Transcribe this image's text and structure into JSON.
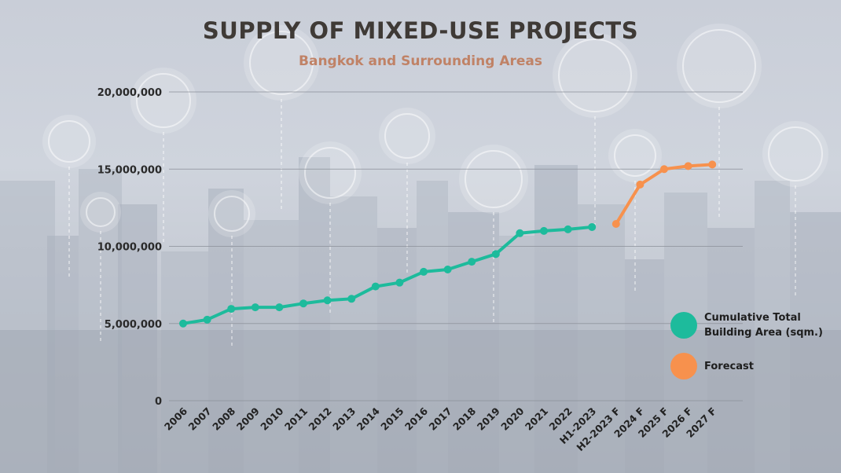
{
  "title": "SUPPLY OF MIXED-USE PROJECTS",
  "subtitle": "Bangkok and Surrounding Areas",
  "legend": [
    {
      "label": "Cumulative Total Building Area (sqm.)",
      "color": "#1dbb9c"
    },
    {
      "label": "Forecast",
      "color": "#f7914d"
    }
  ],
  "chart_data": {
    "type": "line",
    "title": "SUPPLY OF MIXED-USE PROJECTS",
    "subtitle": "Bangkok and Surrounding Areas",
    "xlabel": "",
    "ylabel": "",
    "ylim": [
      0,
      20000000
    ],
    "y_ticks": [
      0,
      5000000,
      10000000,
      15000000,
      20000000
    ],
    "y_tick_labels": [
      "0",
      "5,000,000",
      "10,000,000",
      "15,000,000",
      "20,000,000"
    ],
    "grid": true,
    "legend_position": "right",
    "categories": [
      "2006",
      "2007",
      "2008",
      "2009",
      "2010",
      "2011",
      "2012",
      "2013",
      "2014",
      "2015",
      "2016",
      "2017",
      "2018",
      "2019",
      "2020",
      "2021",
      "2022",
      "H1-2023",
      "H2-2023 F",
      "2024 F",
      "2025 F",
      "2026 F",
      "2027 F"
    ],
    "series": [
      {
        "name": "Cumulative Total Building Area (sqm.)",
        "color": "#1dbb9c",
        "values": [
          5000000,
          5250000,
          5950000,
          6050000,
          6050000,
          6300000,
          6500000,
          6600000,
          7400000,
          7650000,
          8350000,
          8500000,
          9000000,
          9500000,
          10850000,
          11000000,
          11100000,
          11250000,
          null,
          null,
          null,
          null,
          null
        ]
      },
      {
        "name": "Forecast",
        "color": "#f7914d",
        "values": [
          null,
          null,
          null,
          null,
          null,
          null,
          null,
          null,
          null,
          null,
          null,
          null,
          null,
          null,
          null,
          null,
          null,
          null,
          11450000,
          14000000,
          15000000,
          15200000,
          15300000
        ]
      }
    ]
  }
}
